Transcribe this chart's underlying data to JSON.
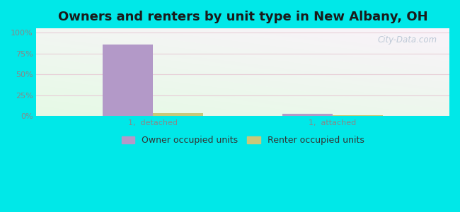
{
  "title": "Owners and renters by unit type in New Albany, OH",
  "categories": [
    "1,  detached",
    "1,  attached"
  ],
  "owner_values": [
    86,
    3
  ],
  "renter_values": [
    4,
    1
  ],
  "owner_color": "#b399c8",
  "renter_color": "#c8c87a",
  "yticks": [
    0,
    25,
    50,
    75,
    100
  ],
  "ytick_labels": [
    "0%",
    "25%",
    "50%",
    "75%",
    "100%"
  ],
  "ylim": [
    0,
    105
  ],
  "outer_bg": "#00e8e8",
  "title_fontsize": 13,
  "legend_fontsize": 9,
  "axis_fontsize": 8,
  "bar_width": 0.28,
  "watermark": "City-Data.com",
  "grid_color": "#e8d0d8",
  "tick_color": "#888888"
}
